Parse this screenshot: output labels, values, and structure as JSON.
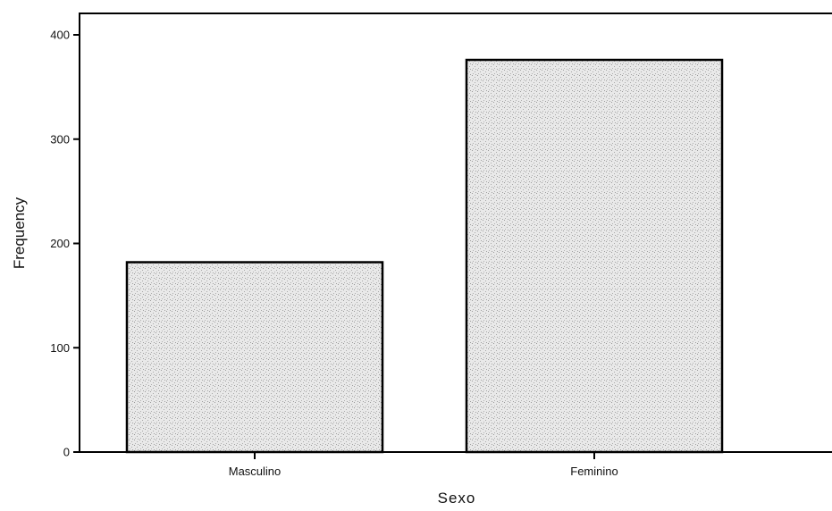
{
  "chart_data": {
    "type": "bar",
    "title": "",
    "xlabel": "Sexo",
    "ylabel": "Frequency",
    "categories": [
      "Masculino",
      "Feminino"
    ],
    "values": [
      182,
      376
    ],
    "ylim": [
      0,
      420
    ],
    "yticks": [
      0,
      100,
      200,
      300,
      400
    ],
    "grid": false,
    "legend": "none",
    "bar_fill": "#e6e6e6",
    "bar_stroke": "#000000"
  }
}
